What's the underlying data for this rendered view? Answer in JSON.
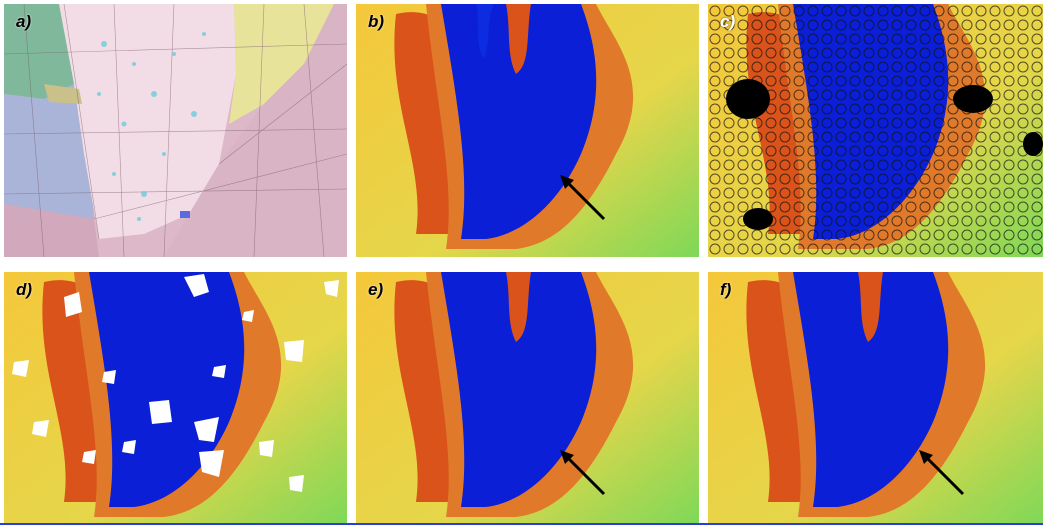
{
  "panels": [
    {
      "id": "a",
      "label": "a)",
      "kind": "geologic-map"
    },
    {
      "id": "b",
      "label": "b)",
      "kind": "bathymetry",
      "arrow": true
    },
    {
      "id": "c",
      "label": "c)",
      "kind": "bathymetry-with-soundings"
    },
    {
      "id": "d",
      "label": "d)",
      "kind": "bathymetry-with-gaps"
    },
    {
      "id": "e",
      "label": "e)",
      "kind": "bathymetry",
      "arrow": true
    },
    {
      "id": "f",
      "label": "f)",
      "kind": "bathymetry",
      "arrow": true
    }
  ],
  "colors": {
    "deep": "#0a1fd6",
    "shallow": "#9fe04a",
    "ridge": "#d9531a",
    "map_pink": "#e9cfd8",
    "map_green": "#7fb89a",
    "map_yellow": "#e8e39a",
    "map_blue": "#a9b4d8"
  }
}
